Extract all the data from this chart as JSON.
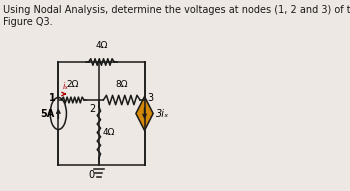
{
  "title_line1": "Using Nodal Analysis, determine the voltages at nodes (1, 2 and 3) of the circuit shown in",
  "title_line2": "Figure Q3.",
  "title_fontsize": 7.0,
  "bg_color": "#ede8e3",
  "wire_color": "#1a1a1a",
  "dependent_source_color": "#d4880a",
  "node1_label": "1",
  "node2_label": "2",
  "node3_label": "3",
  "node0_label": "0",
  "r1_label": "2Ω",
  "r_mid_label": "4Ω",
  "r3_label": "8Ω",
  "r_vert_label": "4Ω",
  "rtop_label": "4Ω",
  "cs_label": "5A",
  "dep_label": "3iₓ",
  "ix_label": "iₓ"
}
